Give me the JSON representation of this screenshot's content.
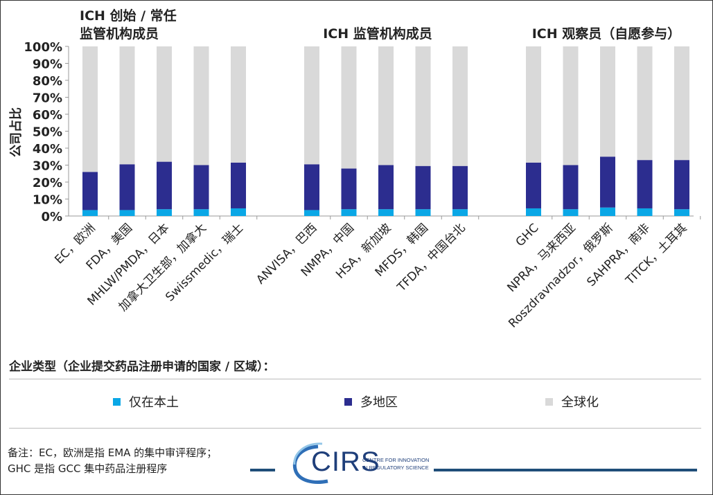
{
  "chart_data": {
    "type": "bar",
    "stacked": true,
    "ylabel": "公司占比",
    "y_ticks": [
      "0%",
      "10%",
      "20%",
      "30%",
      "40%",
      "50%",
      "60%",
      "70%",
      "80%",
      "90%",
      "100%"
    ],
    "ylim": [
      0,
      100
    ],
    "group_titles": [
      [
        "ICH 创始 / 常任",
        "监管机构成员"
      ],
      [
        "ICH 监管机构成员"
      ],
      [
        "ICH 观察员（自愿参与）"
      ]
    ],
    "groups": [
      [
        "EC，欧洲",
        "FDA，美国",
        "MHLW/PMDA，日本",
        "加拿大卫生部，加拿大",
        "Swissmedic，瑞士"
      ],
      [
        "ANVISA，巴西",
        "NMPA，中国",
        "HSA，新加坡",
        "MFDS，韩国",
        "TFDA，中国台北"
      ],
      [
        "GHC",
        "NPRA，马来西亚",
        "Roszdravnadzor，俄罗斯",
        "SAHPRA，南非",
        "TITCK，土耳其"
      ]
    ],
    "series": [
      {
        "name": "仅在本土",
        "color": "#0aa7e6",
        "values": [
          3.5,
          3.5,
          4,
          4,
          4.5,
          3.5,
          4,
          4,
          4,
          4,
          4.5,
          4,
          5,
          4.5,
          4
        ]
      },
      {
        "name": "多地区",
        "color": "#2c2d8f",
        "values": [
          22.5,
          27,
          28,
          26,
          27,
          27,
          24,
          26,
          25.5,
          25.5,
          27,
          26,
          30,
          28.5,
          29
        ]
      },
      {
        "name": "全球化",
        "color": "#d9d9d9",
        "values": [
          74,
          69.5,
          68,
          70,
          68.5,
          69.5,
          72,
          70,
          70.5,
          70.5,
          68.5,
          70,
          65,
          67,
          67
        ]
      }
    ],
    "legend_title": "企业类型（企业提交药品注册申请的国家 / 区域）：",
    "grid": false
  },
  "note": {
    "line1": "备注：EC，欧洲是指 EMA 的集中审评程序；",
    "line2": "GHC 是指 GCC 集中药品注册程序"
  },
  "logo": {
    "text": "CIRS",
    "sub1": "CENTRE FOR INNOVATION",
    "sub2": "IN REGULATORY SCIENCE"
  }
}
